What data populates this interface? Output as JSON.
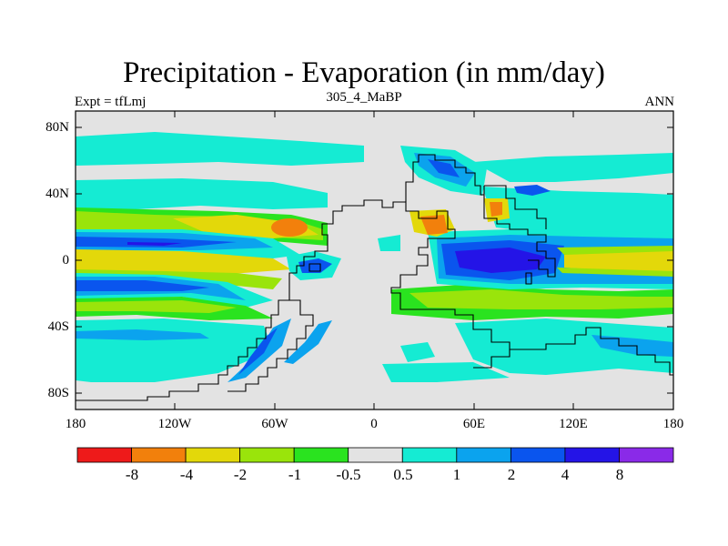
{
  "title": "Precipitation - Evaporation (in mm/day)",
  "subtitle": "305_4_MaBP",
  "left_label": "Expt = tfLmj",
  "right_label": "ANN",
  "y_ticks": [
    "80N",
    "40N",
    "0",
    "40S",
    "80S"
  ],
  "x_ticks": [
    "180",
    "120W",
    "60W",
    "0",
    "60E",
    "120E",
    "180"
  ],
  "colorbar": {
    "colors": [
      "#ee1a1a",
      "#f2800c",
      "#e3d80a",
      "#9ae40b",
      "#2ae31f",
      "#e3e3e3",
      "#15ebd3",
      "#0ba3ee",
      "#0a55ee",
      "#2414e7",
      "#8a2ae8"
    ],
    "labels": [
      "-8",
      "-4",
      "-2",
      "-1",
      "-0.5",
      "0.5",
      "1",
      "2",
      "4",
      "8"
    ]
  },
  "chart_data": {
    "type": "heatmap",
    "title": "Precipitation - Evaporation (in mm/day)",
    "subtitle": "305_4_MaBP",
    "variable": "Precipitation - Evaporation",
    "units": "mm/day",
    "xlim": [
      -180,
      180
    ],
    "ylim": [
      -90,
      90
    ],
    "levels": [
      -8,
      -4,
      -2,
      -1,
      -0.5,
      0.5,
      1,
      2,
      4,
      8
    ],
    "zonal_bands": [
      {
        "lat_range": [
          55,
          75
        ],
        "level": "0.5 to 1"
      },
      {
        "lat_range": [
          30,
          50
        ],
        "level": "0.5 to 1"
      },
      {
        "lat_range": [
          15,
          28
        ],
        "level": "-1 to -0.5"
      },
      {
        "lat_range": [
          6,
          14
        ],
        "level": "2 to 4"
      },
      {
        "lat_range": [
          -6,
          6
        ],
        "level": "-2 to -1"
      },
      {
        "lat_range": [
          -20,
          -7
        ],
        "level": "2 to 4"
      },
      {
        "lat_range": [
          -30,
          -20
        ],
        "level": "-1 to -0.5"
      },
      {
        "lat_range": [
          -60,
          -35
        ],
        "level": "0.5 to 1"
      }
    ],
    "extremes": [
      {
        "region": "eastern Tethys",
        "lon": 80,
        "lat": 0,
        "level": "4 to 8"
      },
      {
        "region": "western Pangaea",
        "lon": -50,
        "lat": 17,
        "level": "-4 to -2"
      },
      {
        "region": "central Pangaea",
        "lon": 40,
        "lat": 18,
        "level": "-4 to -2"
      }
    ]
  }
}
